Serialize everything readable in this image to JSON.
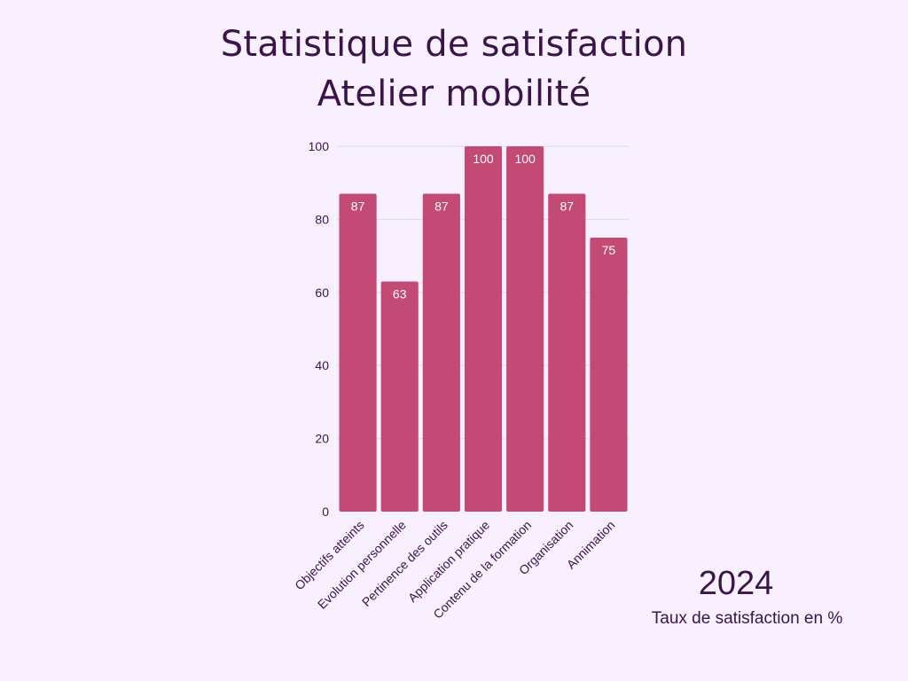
{
  "header": {
    "title_line1": "Statistique de satisfaction",
    "title_line2": "Atelier mobilité"
  },
  "footer": {
    "year": "2024",
    "caption": "Taux de satisfaction en %"
  },
  "colors": {
    "background": "#f8f0ff",
    "bar": "#c24a75",
    "text": "#3b1448",
    "bar_label": "#ffffff",
    "grid": "#ded7e6"
  },
  "chart_data": {
    "type": "bar",
    "categories": [
      "Objectifs atteints",
      "Evolution personnelle",
      "Pertinence des outils",
      "Application pratique",
      "Contenu de la formation",
      "Organisation",
      "Annimation"
    ],
    "values": [
      87,
      63,
      87,
      100,
      100,
      87,
      75
    ],
    "ylim": [
      0,
      100
    ],
    "yticks": [
      0,
      20,
      40,
      60,
      80,
      100
    ],
    "grid": true,
    "legend": "none",
    "data_labels": true
  }
}
